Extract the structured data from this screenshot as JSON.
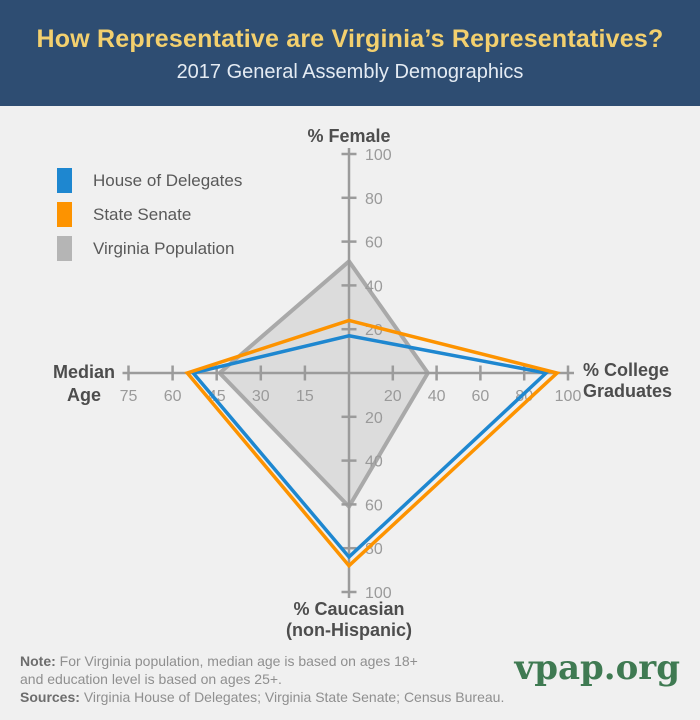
{
  "header": {
    "title": "How Representative are Virginia’s Representatives?",
    "subtitle": "2017 General Assembly Demographics"
  },
  "legend": {
    "items": [
      {
        "label": "House of Delegates",
        "color": "#1e87d0"
      },
      {
        "label": "State Senate",
        "color": "#fd9300"
      },
      {
        "label": "Virginia Population",
        "color": "#b5b5b5"
      }
    ]
  },
  "chart_data": {
    "type": "radar",
    "title": "2017 General Assembly Demographics",
    "axes": [
      {
        "id": "female",
        "direction": "up",
        "label": "% Female",
        "label_lines": [
          "% Female"
        ],
        "max": 100,
        "ticks": [
          20,
          40,
          60,
          80,
          100
        ]
      },
      {
        "id": "college",
        "direction": "right",
        "label": "% College Graduates",
        "label_lines": [
          "% College",
          "Graduates"
        ],
        "max": 100,
        "ticks": [
          20,
          40,
          60,
          80,
          100
        ]
      },
      {
        "id": "caucasian",
        "direction": "down",
        "label": "% Caucasian (non-Hispanic)",
        "label_lines": [
          "% Caucasian",
          "(non-Hispanic)"
        ],
        "max": 100,
        "ticks": [
          20,
          40,
          60,
          80,
          100
        ]
      },
      {
        "id": "median_age",
        "direction": "left",
        "label": "Median Age",
        "label_lines": [
          "Median",
          "Age"
        ],
        "max": 75,
        "ticks": [
          15,
          30,
          45,
          60,
          75
        ]
      }
    ],
    "series": [
      {
        "name": "Virginia Population",
        "stroke": "#a9a9a9",
        "fill": "rgba(176,176,176,0.32)",
        "filled": true,
        "values": {
          "female": 51,
          "college": 36,
          "caucasian": 61,
          "median_age": 44
        }
      },
      {
        "name": "House of Delegates",
        "stroke": "#1e87d0",
        "fill": "none",
        "filled": false,
        "values": {
          "female": 17,
          "college": 90,
          "caucasian": 84,
          "median_age": 53
        }
      },
      {
        "name": "State Senate",
        "stroke": "#fd9300",
        "fill": "none",
        "filled": false,
        "values": {
          "female": 24,
          "college": 95,
          "caucasian": 88,
          "median_age": 55
        }
      }
    ],
    "axis_color": "#9b9b9b",
    "tick_label_color": "#9a9a9a",
    "legend_position": "top-left",
    "grid": false
  },
  "footer": {
    "note_label": "Note:",
    "note_line1": "For Virginia population, median age is based on ages 18+",
    "note_line2": "and education level is based on ages 25+.",
    "sources_label": "Sources:",
    "sources_text": "Virginia House of Delegates; Virginia State Senate; Census Bureau.",
    "logo_text": "vpap.org"
  },
  "colors": {
    "header_bg": "#2e4d72",
    "title": "#f3d06e",
    "subtitle": "#e4ebf3",
    "body_bg": "#f0f0f0",
    "logo_green": "#3f7a52"
  }
}
